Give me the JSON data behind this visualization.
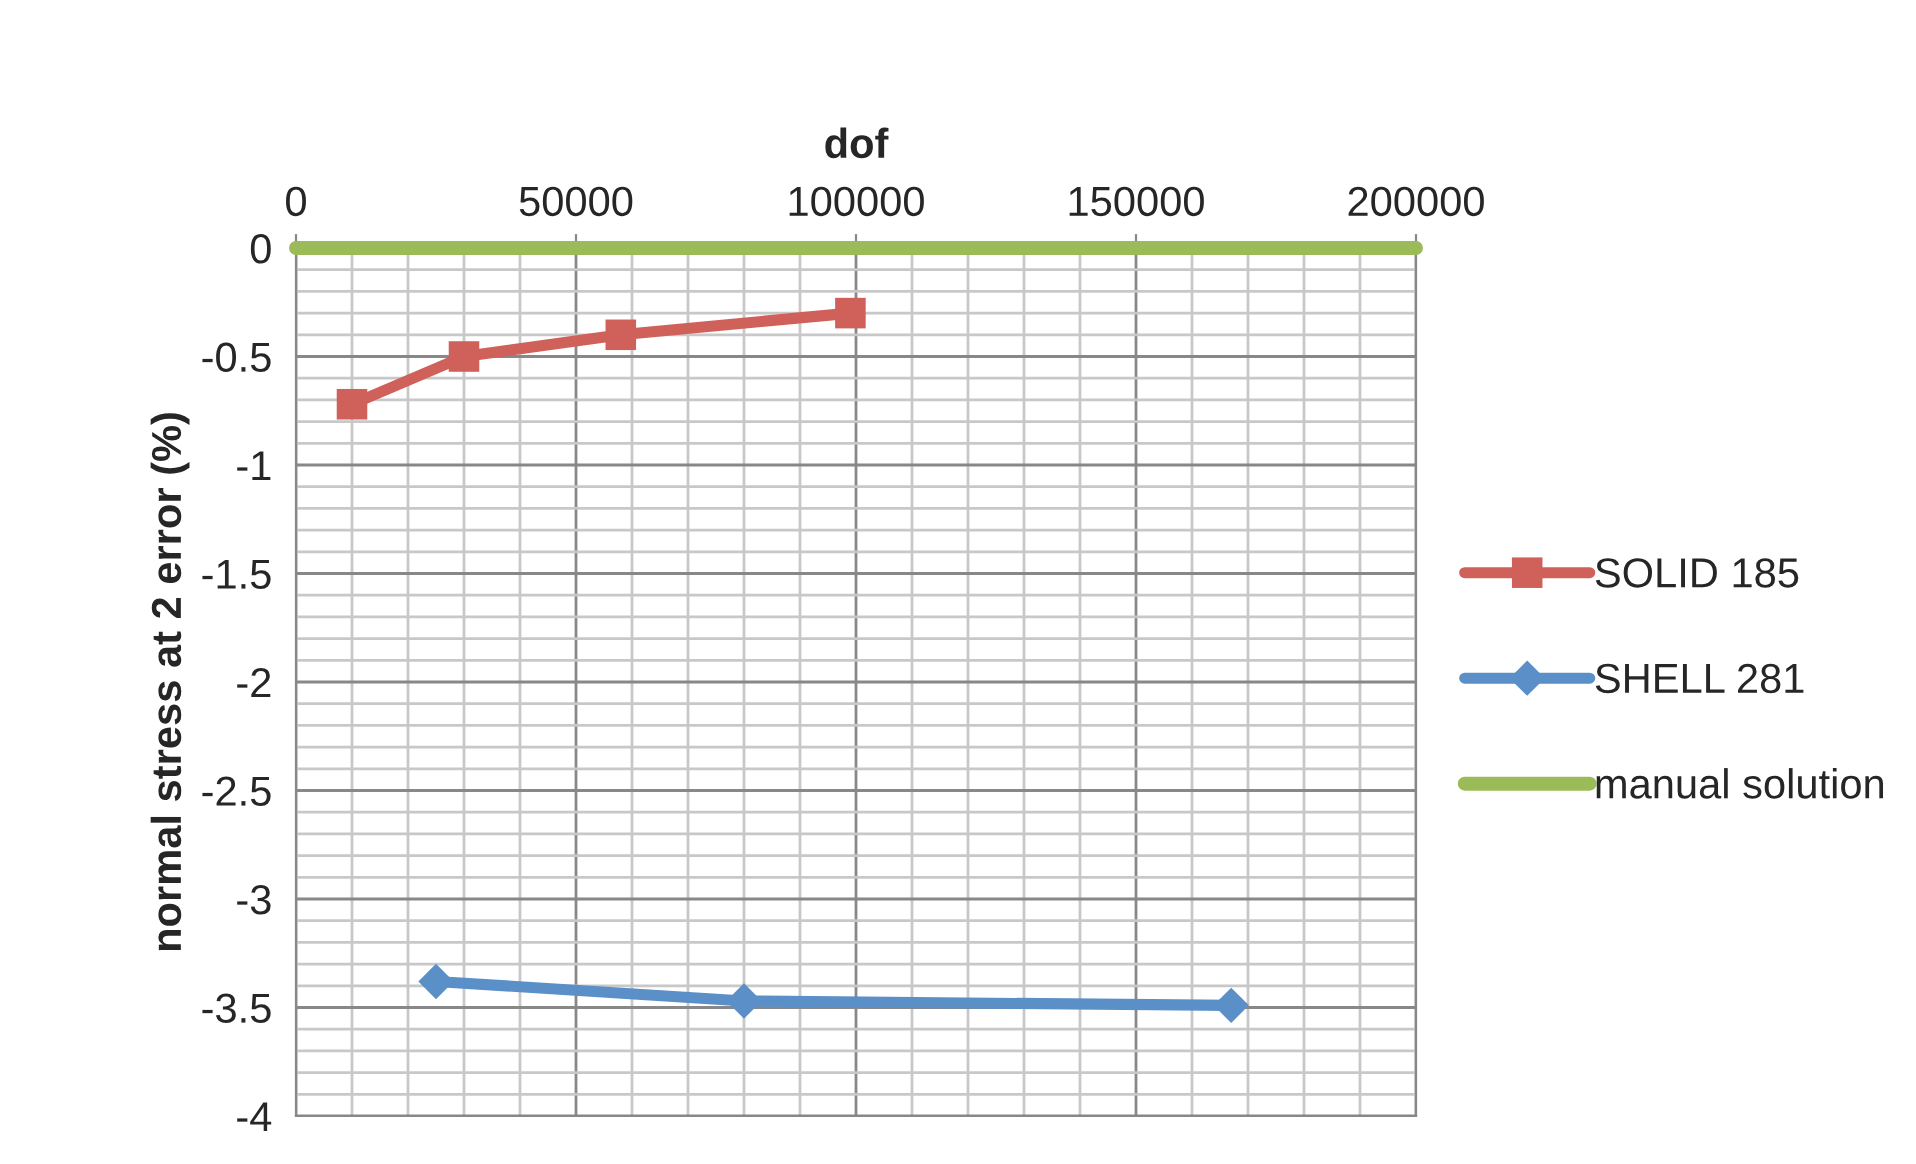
{
  "chart_data": {
    "type": "line",
    "xlabel": "dof",
    "ylabel": "normal stress at 2 error (%)",
    "xlim": [
      0,
      200000
    ],
    "xticks": [
      0,
      50000,
      100000,
      150000,
      200000
    ],
    "ylim": [
      -4,
      0
    ],
    "yticks": [
      -4,
      -3.5,
      -3,
      -2.5,
      -2,
      -1.5,
      -1,
      -0.5,
      0
    ],
    "grid": true,
    "legend": "right",
    "series": [
      {
        "name": "SOLID 185",
        "color": "#d0605a",
        "marker": "square",
        "x": [
          10000,
          30000,
          58000,
          99000
        ],
        "values": [
          -0.72,
          -0.5,
          -0.4,
          -0.3
        ]
      },
      {
        "name": "SHELL 281",
        "color": "#5b8fc8",
        "marker": "diamond",
        "x": [
          25000,
          80000,
          167000
        ],
        "values": [
          -3.38,
          -3.47,
          -3.49
        ]
      },
      {
        "name": "manual solution",
        "color": "#9bbb59",
        "marker": "none",
        "x": [
          0,
          200000
        ],
        "values": [
          0,
          0
        ]
      }
    ]
  }
}
